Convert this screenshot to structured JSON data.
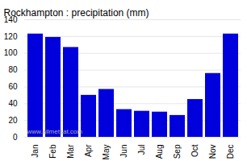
{
  "chart_data": {
    "type": "bar",
    "title": "Rockhampton : precipitation (mm)",
    "categories": [
      "Jan",
      "Feb",
      "Mar",
      "Apr",
      "May",
      "Jun",
      "Jul",
      "Aug",
      "Sep",
      "Oct",
      "Nov",
      "Dec"
    ],
    "values": [
      123,
      119,
      107,
      50,
      57,
      33,
      31,
      30,
      26,
      45,
      76,
      123
    ],
    "color": "#0000dd",
    "ylim": [
      0,
      140
    ],
    "yticks": [
      0,
      20,
      40,
      60,
      80,
      100,
      120,
      140
    ],
    "grid": true,
    "annotations": [
      "www.allmetsat.com"
    ]
  }
}
